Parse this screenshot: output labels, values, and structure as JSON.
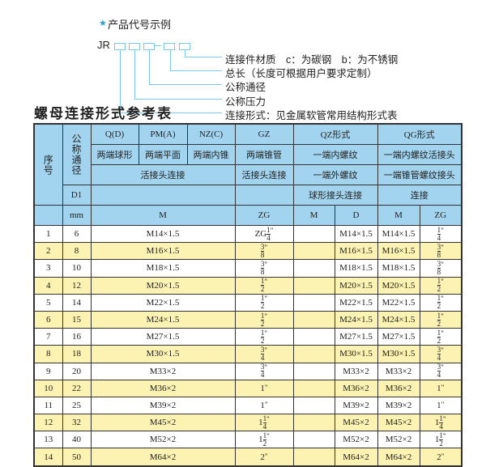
{
  "code_example": {
    "title": "产品代号示例",
    "prefix": "JR",
    "labels": [
      "连接件材质　c：为碳钢　b：为不锈钢",
      "总长（长度可根据用户要求定制）",
      "公称通径",
      "公称压力",
      "连接形式：见金属软管常用结构形式表"
    ]
  },
  "colors": {
    "header_bg": "#a3d4ef",
    "alt_row": "#fcf2b2",
    "accent": "#2a9fd8"
  },
  "section_title": "螺母连接形式参考表",
  "table": {
    "h": {
      "seq": "序号",
      "dn": "公称通径",
      "q": "Q(D)",
      "pm": "PM(A)",
      "nz": "NZ(C)",
      "gz": "GZ",
      "qz": "QZ形式",
      "qg": "QG形式",
      "q2": "两端球形",
      "pm2": "两端平面",
      "nz2": "两端内锥",
      "gz2": "两端锥管",
      "qz2": "一端内螺纹",
      "qg2": "一端内螺纹活接头",
      "hjt": "活接头连接",
      "gz3": "活接头连接",
      "qz3": "一端外螺纹",
      "qg3": "一端锥管螺纹接头",
      "d1": "D1",
      "qz4": "球形接头连接",
      "qg4": "连接",
      "mm": "mm",
      "m": "M",
      "zg": "ZG",
      "qzm": "M",
      "qzd": "D",
      "qgm": "M",
      "qgzg": "ZG"
    },
    "rows": [
      {
        "no": "1",
        "dn": "6",
        "m": "M14×1.5",
        "zg": {
          "pre": "ZG",
          "whole": "",
          "num": "1",
          "den": "4",
          "unit": "\""
        },
        "qzd": "M14×1.5",
        "qgm": "M14×1.5",
        "qgzg": {
          "pre": "",
          "whole": "",
          "num": "1",
          "den": "4",
          "unit": "\""
        }
      },
      {
        "no": "2",
        "dn": "8",
        "m": "M16×1.5",
        "zg": {
          "pre": "",
          "whole": "",
          "num": "3",
          "den": "8",
          "unit": "\""
        },
        "qzd": "M16×1.5",
        "qgm": "M16×1.5",
        "qgzg": {
          "pre": "",
          "whole": "",
          "num": "3",
          "den": "8",
          "unit": "\""
        }
      },
      {
        "no": "3",
        "dn": "10",
        "m": "M18×1.5",
        "zg": {
          "pre": "",
          "whole": "",
          "num": "3",
          "den": "8",
          "unit": "\""
        },
        "qzd": "M18×1.5",
        "qgm": "M18×1.5",
        "qgzg": {
          "pre": "",
          "whole": "",
          "num": "3",
          "den": "8",
          "unit": "\""
        }
      },
      {
        "no": "4",
        "dn": "12",
        "m": "M20×1.5",
        "zg": {
          "pre": "",
          "whole": "",
          "num": "1",
          "den": "2",
          "unit": "\""
        },
        "qzd": "M20×1.5",
        "qgm": "M20×1.5",
        "qgzg": {
          "pre": "",
          "whole": "",
          "num": "1",
          "den": "2",
          "unit": "\""
        }
      },
      {
        "no": "5",
        "dn": "14",
        "m": "M22×1.5",
        "zg": {
          "pre": "",
          "whole": "",
          "num": "1",
          "den": "2",
          "unit": "\""
        },
        "qzd": "M22×1.5",
        "qgm": "M22×1.5",
        "qgzg": {
          "pre": "",
          "whole": "",
          "num": "1",
          "den": "2",
          "unit": "\""
        }
      },
      {
        "no": "6",
        "dn": "15",
        "m": "M24×1.5",
        "zg": {
          "pre": "",
          "whole": "",
          "num": "1",
          "den": "2",
          "unit": "\""
        },
        "qzd": "M24×1.5",
        "qgm": "M24×1.5",
        "qgzg": {
          "pre": "",
          "whole": "",
          "num": "1",
          "den": "2",
          "unit": "\""
        }
      },
      {
        "no": "7",
        "dn": "16",
        "m": "M27×1.5",
        "zg": {
          "pre": "",
          "whole": "",
          "num": "1",
          "den": "2",
          "unit": "\""
        },
        "qzd": "M27×1.5",
        "qgm": "M27×1.5",
        "qgzg": {
          "pre": "",
          "whole": "",
          "num": "1",
          "den": "2",
          "unit": "\""
        }
      },
      {
        "no": "8",
        "dn": "18",
        "m": "M30×1.5",
        "zg": {
          "pre": "",
          "whole": "",
          "num": "3",
          "den": "4",
          "unit": "\""
        },
        "qzd": "M30×1.5",
        "qgm": "M30×1.5",
        "qgzg": {
          "pre": "",
          "whole": "",
          "num": "3",
          "den": "4",
          "unit": "\""
        }
      },
      {
        "no": "9",
        "dn": "20",
        "m": "M33×2",
        "zg": {
          "pre": "",
          "whole": "",
          "num": "3",
          "den": "4",
          "unit": "\""
        },
        "qzd": "M33×2",
        "qgm": "M33×2",
        "qgzg": {
          "pre": "",
          "whole": "",
          "num": "3",
          "den": "4",
          "unit": "\""
        }
      },
      {
        "no": "10",
        "dn": "22",
        "m": "M36×2",
        "zg": {
          "pre": "",
          "whole": "1",
          "num": "",
          "den": "",
          "unit": "\""
        },
        "qzd": "M36×2",
        "qgm": "M36×2",
        "qgzg": {
          "pre": "",
          "whole": "1",
          "num": "",
          "den": "",
          "unit": "\""
        }
      },
      {
        "no": "11",
        "dn": "25",
        "m": "M39×2",
        "zg": {
          "pre": "",
          "whole": "1",
          "num": "",
          "den": "",
          "unit": "\""
        },
        "qzd": "M39×2",
        "qgm": "M39×2",
        "qgzg": {
          "pre": "",
          "whole": "1",
          "num": "",
          "den": "",
          "unit": "\""
        }
      },
      {
        "no": "12",
        "dn": "32",
        "m": "M45×2",
        "zg": {
          "pre": "",
          "whole": "1",
          "num": "1",
          "den": "4",
          "unit": "\""
        },
        "qzd": "M45×2",
        "qgm": "M45×2",
        "qgzg": {
          "pre": "",
          "whole": "1",
          "num": "1",
          "den": "4",
          "unit": "\""
        }
      },
      {
        "no": "13",
        "dn": "40",
        "m": "M52×2",
        "zg": {
          "pre": "",
          "whole": "1",
          "num": "1",
          "den": "2",
          "unit": "\""
        },
        "qzd": "M52×2",
        "qgm": "M52×2",
        "qgzg": {
          "pre": "",
          "whole": "1",
          "num": "1",
          "den": "2",
          "unit": "\""
        }
      },
      {
        "no": "14",
        "dn": "50",
        "m": "M64×2",
        "zg": {
          "pre": "",
          "whole": "2",
          "num": "",
          "den": "",
          "unit": "\""
        },
        "qzd": "M64×2",
        "qgm": "M64×2",
        "qgzg": {
          "pre": "",
          "whole": "2",
          "num": "",
          "den": "",
          "unit": "\""
        }
      }
    ]
  }
}
